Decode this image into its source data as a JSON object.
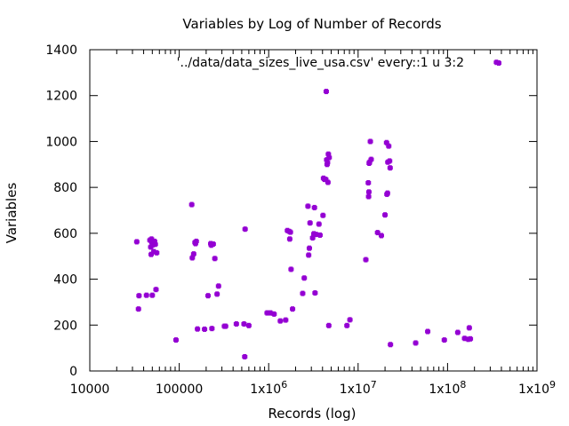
{
  "chart_data": {
    "type": "scatter",
    "title": "Variables by Log of Number of Records",
    "xlabel": "Records (log)",
    "ylabel": "Variables",
    "x_scale": "log",
    "xlim": [
      10000,
      1000000000
    ],
    "ylim": [
      0,
      1400
    ],
    "x_tick_labels": [
      "10000",
      "100000",
      "1x10^6",
      "1x10^7",
      "1x10^8",
      "1x10^9"
    ],
    "y_tick_labels": [
      "0",
      "200",
      "400",
      "600",
      "800",
      "1000",
      "1200",
      "1400"
    ],
    "grid": false,
    "legend_position": "top-right",
    "point_color": "#9400d3",
    "series": [
      {
        "name": "'../data/data_sizes_live_usa.csv' every::1 u 3:2",
        "points": [
          [
            33500,
            563
          ],
          [
            35000,
            270
          ],
          [
            35500,
            328
          ],
          [
            43000,
            330
          ],
          [
            47000,
            570
          ],
          [
            48000,
            540
          ],
          [
            48500,
            508
          ],
          [
            49000,
            575
          ],
          [
            49500,
            560
          ],
          [
            50000,
            330
          ],
          [
            51000,
            550
          ],
          [
            52000,
            520
          ],
          [
            53000,
            565
          ],
          [
            54000,
            552
          ],
          [
            55000,
            355
          ],
          [
            56000,
            515
          ],
          [
            92000,
            135
          ],
          [
            138000,
            725
          ],
          [
            140000,
            493
          ],
          [
            145000,
            510
          ],
          [
            150000,
            560
          ],
          [
            152000,
            555
          ],
          [
            155000,
            565
          ],
          [
            160000,
            183
          ],
          [
            192000,
            182
          ],
          [
            210000,
            328
          ],
          [
            225000,
            555
          ],
          [
            228000,
            548
          ],
          [
            232000,
            185
          ],
          [
            240000,
            553
          ],
          [
            250000,
            490
          ],
          [
            265000,
            335
          ],
          [
            275000,
            370
          ],
          [
            320000,
            195
          ],
          [
            330000,
            195
          ],
          [
            435000,
            205
          ],
          [
            530000,
            205
          ],
          [
            540000,
            62
          ],
          [
            545000,
            618
          ],
          [
            600000,
            198
          ],
          [
            960000,
            253
          ],
          [
            1050000,
            253
          ],
          [
            1150000,
            248
          ],
          [
            1350000,
            218
          ],
          [
            1550000,
            222
          ],
          [
            1620000,
            612
          ],
          [
            1700000,
            608
          ],
          [
            1720000,
            575
          ],
          [
            1750000,
            605
          ],
          [
            1780000,
            443
          ],
          [
            1850000,
            270
          ],
          [
            2400000,
            338
          ],
          [
            2500000,
            405
          ],
          [
            2750000,
            718
          ],
          [
            2800000,
            505
          ],
          [
            2850000,
            535
          ],
          [
            2900000,
            645
          ],
          [
            3100000,
            580
          ],
          [
            3200000,
            598
          ],
          [
            3250000,
            712
          ],
          [
            3300000,
            340
          ],
          [
            3400000,
            595
          ],
          [
            3650000,
            640
          ],
          [
            3750000,
            592
          ],
          [
            4050000,
            678
          ],
          [
            4100000,
            840
          ],
          [
            4200000,
            835
          ],
          [
            4350000,
            835
          ],
          [
            4400000,
            1218
          ],
          [
            4450000,
            920
          ],
          [
            4500000,
            900
          ],
          [
            4550000,
            908
          ],
          [
            4600000,
            822
          ],
          [
            4650000,
            945
          ],
          [
            4700000,
            198
          ],
          [
            4750000,
            930
          ],
          [
            7500000,
            198
          ],
          [
            8100000,
            223
          ],
          [
            12200000,
            485
          ],
          [
            13000000,
            820
          ],
          [
            13100000,
            760
          ],
          [
            13200000,
            780
          ],
          [
            13300000,
            905
          ],
          [
            13400000,
            910
          ],
          [
            13700000,
            1000
          ],
          [
            14000000,
            922
          ],
          [
            16500000,
            603
          ],
          [
            18200000,
            590
          ],
          [
            20000000,
            680
          ],
          [
            20800000,
            995
          ],
          [
            21000000,
            770
          ],
          [
            21300000,
            775
          ],
          [
            21500000,
            910
          ],
          [
            22000000,
            980
          ],
          [
            22500000,
            915
          ],
          [
            22800000,
            885
          ],
          [
            23000000,
            115
          ],
          [
            44000000,
            122
          ],
          [
            60000000,
            172
          ],
          [
            92000000,
            135
          ],
          [
            130000000,
            168
          ],
          [
            155000000,
            142
          ],
          [
            170000000,
            138
          ],
          [
            175000000,
            188
          ],
          [
            180000000,
            140
          ],
          [
            352000000,
            1345
          ]
        ]
      }
    ]
  }
}
